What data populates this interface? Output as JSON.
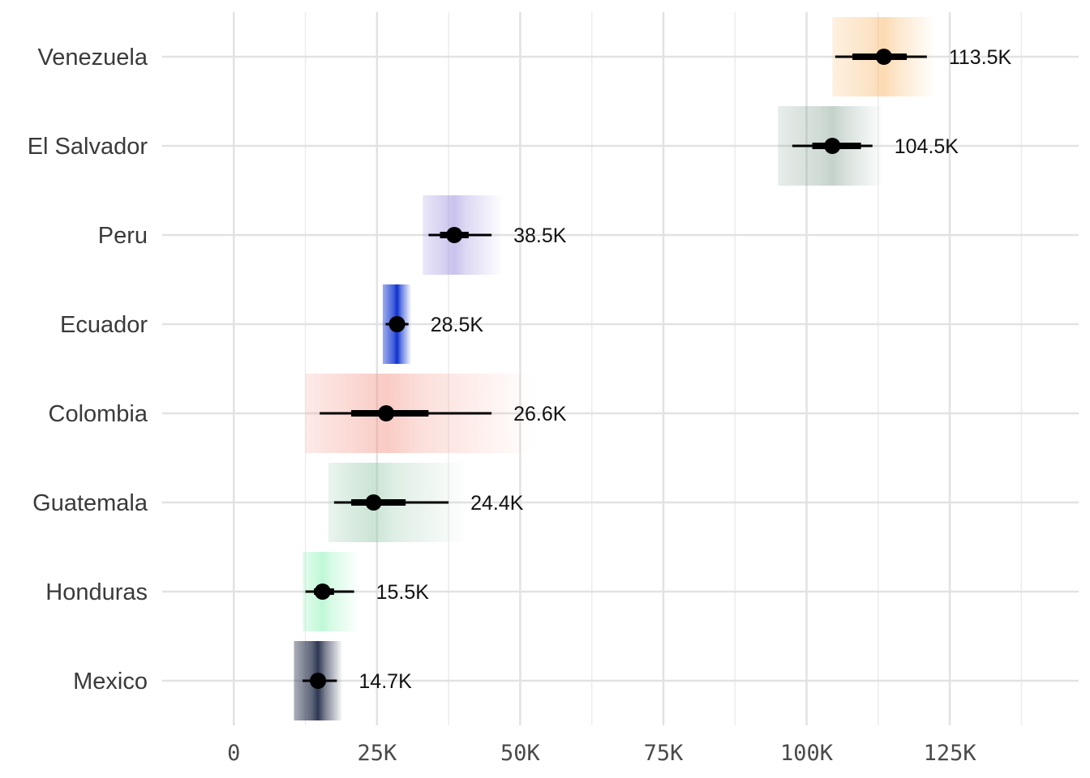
{
  "chart_data": {
    "type": "point-interval",
    "title": "",
    "xlabel": "",
    "ylabel": "",
    "xlim": [
      -12500,
      147500
    ],
    "grid": true,
    "legend": "none",
    "x_ticks": [
      {
        "value": 0,
        "label": "0"
      },
      {
        "value": 25000,
        "label": "25K"
      },
      {
        "value": 50000,
        "label": "50K"
      },
      {
        "value": 75000,
        "label": "75K"
      },
      {
        "value": 100000,
        "label": "100K"
      },
      {
        "value": 125000,
        "label": "125K"
      }
    ],
    "x_minor_ticks": [
      12500,
      37500,
      62500,
      87500,
      112500,
      137500
    ],
    "rows": [
      {
        "category": "Venezuela",
        "value": 113500,
        "label": "113.5K",
        "inner": [
          108000,
          117500
        ],
        "outer": [
          105000,
          121000
        ],
        "band": [
          104500,
          122500
        ],
        "color": "#f7ad54"
      },
      {
        "category": "El Salvador",
        "value": 104500,
        "label": "104.5K",
        "inner": [
          101000,
          109500
        ],
        "outer": [
          97500,
          111500
        ],
        "band": [
          95000,
          113500
        ],
        "color": "#7c9a8a"
      },
      {
        "category": "Peru",
        "value": 38500,
        "label": "38.5K",
        "inner": [
          36000,
          41000
        ],
        "outer": [
          34000,
          45000
        ],
        "band": [
          33000,
          47000
        ],
        "color": "#8777d6"
      },
      {
        "category": "Ecuador",
        "value": 28500,
        "label": "28.5K",
        "inner": [
          27500,
          29500
        ],
        "outer": [
          26500,
          30500
        ],
        "band": [
          26000,
          31000
        ],
        "color": "#0a2fd0"
      },
      {
        "category": "Colombia",
        "value": 26600,
        "label": "26.6K",
        "inner": [
          20500,
          34000
        ],
        "outer": [
          15000,
          45000
        ],
        "band": [
          12500,
          52500
        ],
        "color": "#f28b7c"
      },
      {
        "category": "Guatemala",
        "value": 24400,
        "label": "24.4K",
        "inner": [
          20500,
          30000
        ],
        "outer": [
          17500,
          37500
        ],
        "band": [
          16500,
          41000
        ],
        "color": "#8cc3a2"
      },
      {
        "category": "Honduras",
        "value": 15500,
        "label": "15.5K",
        "inner": [
          14000,
          17500
        ],
        "outer": [
          12500,
          21000
        ],
        "band": [
          12000,
          22000
        ],
        "color": "#6ff0a4"
      },
      {
        "category": "Mexico",
        "value": 14700,
        "label": "14.7K",
        "inner": [
          13500,
          16000
        ],
        "outer": [
          12000,
          18000
        ],
        "band": [
          10500,
          19000
        ],
        "color": "#2c3550"
      }
    ]
  }
}
